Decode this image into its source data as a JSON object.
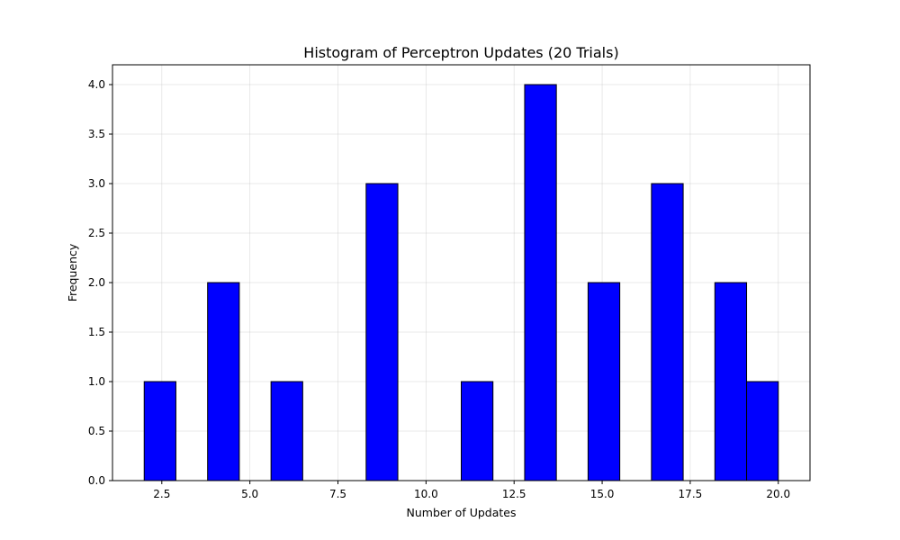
{
  "chart_data": {
    "type": "bar",
    "title": "Histogram of Perceptron Updates (20 Trials)",
    "xlabel": "Number of Updates",
    "ylabel": "Frequency",
    "xlim": [
      1.1,
      20.9
    ],
    "ylim": [
      0,
      4.2
    ],
    "xticks": [
      2.5,
      5.0,
      7.5,
      10.0,
      12.5,
      15.0,
      17.5,
      20.0
    ],
    "xtick_labels": [
      "2.5",
      "5.0",
      "7.5",
      "10.0",
      "12.5",
      "15.0",
      "17.5",
      "20.0"
    ],
    "yticks": [
      0,
      0.5,
      1.0,
      1.5,
      2.0,
      2.5,
      3.0,
      3.5,
      4.0
    ],
    "ytick_labels": [
      "0.0",
      "0.5",
      "1.0",
      "1.5",
      "2.0",
      "2.5",
      "3.0",
      "3.5",
      "4.0"
    ],
    "grid": true,
    "bar_color": "#0000ff",
    "edge_color": "#000000",
    "bins": [
      {
        "start": 2.0,
        "end": 2.9,
        "count": 1
      },
      {
        "start": 2.9,
        "end": 3.8,
        "count": 0
      },
      {
        "start": 3.8,
        "end": 4.7,
        "count": 2
      },
      {
        "start": 4.7,
        "end": 5.6,
        "count": 0
      },
      {
        "start": 5.6,
        "end": 6.5,
        "count": 1
      },
      {
        "start": 6.5,
        "end": 7.4,
        "count": 0
      },
      {
        "start": 7.4,
        "end": 8.3,
        "count": 0
      },
      {
        "start": 8.3,
        "end": 9.2,
        "count": 3
      },
      {
        "start": 9.2,
        "end": 10.1,
        "count": 0
      },
      {
        "start": 10.1,
        "end": 11.0,
        "count": 0
      },
      {
        "start": 11.0,
        "end": 11.9,
        "count": 1
      },
      {
        "start": 11.9,
        "end": 12.8,
        "count": 0
      },
      {
        "start": 12.8,
        "end": 13.7,
        "count": 4
      },
      {
        "start": 13.7,
        "end": 14.6,
        "count": 0
      },
      {
        "start": 14.6,
        "end": 15.5,
        "count": 2
      },
      {
        "start": 15.5,
        "end": 16.4,
        "count": 0
      },
      {
        "start": 16.4,
        "end": 17.3,
        "count": 3
      },
      {
        "start": 17.3,
        "end": 18.2,
        "count": 0
      },
      {
        "start": 18.2,
        "end": 19.1,
        "count": 2
      },
      {
        "start": 19.1,
        "end": 20.0,
        "count": 1
      }
    ]
  }
}
